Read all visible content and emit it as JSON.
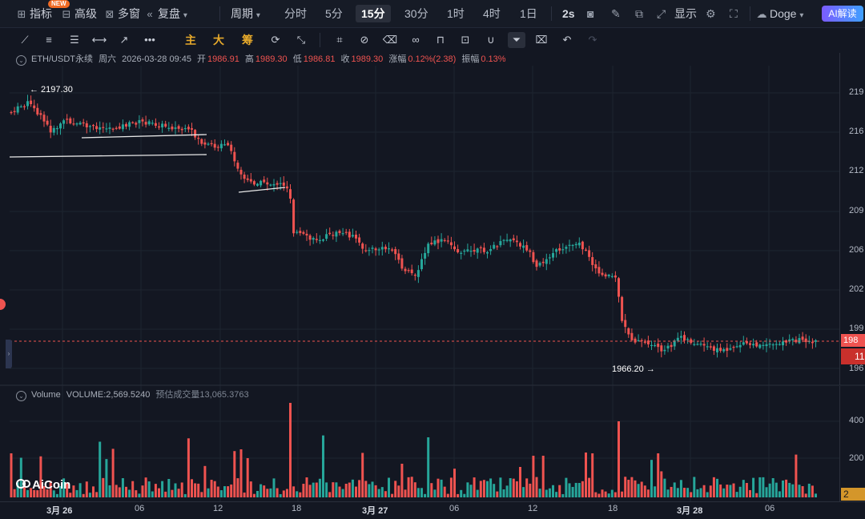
{
  "topbar": {
    "indicators_label": "指标",
    "new_badge": "NEW",
    "advanced_label": "高级",
    "multiwindow_label": "多窗",
    "replay_label": "复盘",
    "period_label": "周期",
    "timeframes": [
      "分时",
      "5分",
      "15分",
      "30分",
      "1时",
      "4时",
      "1日"
    ],
    "active_timeframe": "15分",
    "refresh_label": "2s",
    "display_label": "显示",
    "doge_label": "Doge",
    "ai_label": "AI解读"
  },
  "toolbar2": {
    "main_label": "主",
    "big_label": "大",
    "chip_label": "筹"
  },
  "info": {
    "symbol": "ETH/USDT永续",
    "weekday": "周六",
    "datetime": "2026-03-28 09:45",
    "open_label": "开",
    "open": "1986.91",
    "high_label": "高",
    "high": "1989.30",
    "low_label": "低",
    "low": "1986.81",
    "close_label": "收",
    "close": "1989.30",
    "change_label": "涨幅",
    "change": "0.12%(2.38)",
    "amplitude_label": "振幅",
    "amplitude": "0.13%"
  },
  "volume": {
    "label": "Volume",
    "value_label": "VOLUME:",
    "value": "2,569.5240",
    "est_label": "预估成交量",
    "est_value": "13,065.3763"
  },
  "annotations": {
    "high_marker": "← 2197.30",
    "low_marker": "1966.20 →"
  },
  "price_axis": {
    "ticks": [
      "219",
      "216",
      "212",
      "209",
      "206",
      "202",
      "199",
      "196"
    ],
    "current_badge": "198",
    "count_badge": "11"
  },
  "volume_axis": {
    "ticks": [
      "400",
      "200"
    ],
    "current_badge": "2"
  },
  "time_axis": {
    "ticks": [
      "3月 26",
      "06",
      "12",
      "18",
      "3月 27",
      "06",
      "12",
      "18",
      "3月 28",
      "06"
    ]
  },
  "logo": "AiCoin",
  "colors": {
    "up": "#26a69a",
    "down": "#ef5350",
    "background": "#131722",
    "accent": "#e6a92b"
  }
}
